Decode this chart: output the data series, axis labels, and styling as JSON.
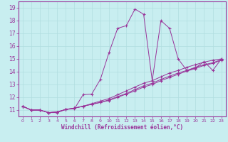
{
  "xlabel": "Windchill (Refroidissement éolien,°C)",
  "bg_color": "#c8eef0",
  "line_color": "#993399",
  "grid_color": "#b0dde0",
  "xlim": [
    -0.5,
    23.5
  ],
  "ylim": [
    10.5,
    19.5
  ],
  "xticks": [
    0,
    1,
    2,
    3,
    4,
    5,
    6,
    7,
    8,
    9,
    10,
    11,
    12,
    13,
    14,
    15,
    16,
    17,
    18,
    19,
    20,
    21,
    22,
    23
  ],
  "yticks": [
    11,
    12,
    13,
    14,
    15,
    16,
    17,
    18,
    19
  ],
  "line1_x": [
    0,
    1,
    2,
    3,
    4,
    5,
    6,
    7,
    8,
    9,
    10,
    11,
    12,
    13,
    14,
    15,
    16,
    17,
    18,
    19,
    20,
    21,
    22,
    23
  ],
  "line1_y": [
    11.3,
    11.0,
    11.0,
    10.8,
    10.8,
    11.05,
    11.1,
    12.2,
    12.25,
    13.4,
    15.5,
    17.4,
    17.6,
    18.9,
    18.5,
    13.3,
    18.0,
    17.4,
    15.0,
    14.1,
    14.3,
    14.8,
    14.1,
    15.0
  ],
  "line2_x": [
    0,
    1,
    2,
    3,
    4,
    5,
    6,
    7,
    8,
    9,
    10,
    11,
    12,
    13,
    14,
    15,
    16,
    17,
    18,
    19,
    20,
    21,
    22,
    23
  ],
  "line2_y": [
    11.3,
    11.0,
    11.0,
    10.8,
    10.85,
    11.05,
    11.15,
    11.3,
    11.5,
    11.7,
    11.9,
    12.2,
    12.5,
    12.8,
    13.1,
    13.3,
    13.6,
    13.9,
    14.1,
    14.35,
    14.55,
    14.75,
    14.9,
    15.0
  ],
  "line3_x": [
    0,
    1,
    2,
    3,
    4,
    5,
    6,
    7,
    8,
    9,
    10,
    11,
    12,
    13,
    14,
    15,
    16,
    17,
    18,
    19,
    20,
    21,
    22,
    23
  ],
  "line3_y": [
    11.3,
    11.0,
    11.0,
    10.8,
    10.85,
    11.05,
    11.15,
    11.3,
    11.45,
    11.6,
    11.8,
    12.05,
    12.3,
    12.6,
    12.9,
    13.1,
    13.4,
    13.65,
    13.9,
    14.1,
    14.35,
    14.55,
    14.7,
    14.95
  ],
  "line4_x": [
    0,
    1,
    2,
    3,
    4,
    5,
    6,
    7,
    8,
    9,
    10,
    11,
    12,
    13,
    14,
    15,
    16,
    17,
    18,
    19,
    20,
    21,
    22,
    23
  ],
  "line4_y": [
    11.3,
    11.0,
    11.0,
    10.8,
    10.85,
    11.05,
    11.15,
    11.3,
    11.45,
    11.6,
    11.75,
    12.0,
    12.25,
    12.5,
    12.8,
    13.0,
    13.3,
    13.55,
    13.8,
    14.05,
    14.25,
    14.5,
    14.65,
    14.9
  ]
}
